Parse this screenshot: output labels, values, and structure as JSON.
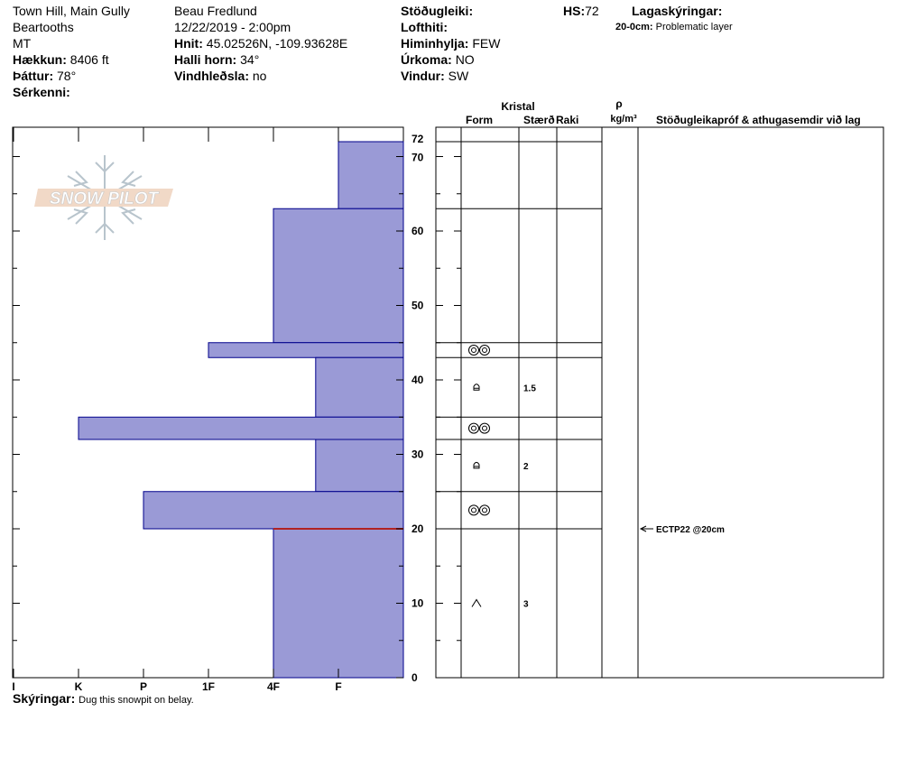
{
  "header": {
    "location": "Town Hill, Main Gully",
    "range": "Beartooths",
    "state": "MT",
    "elevation_label": "Hækkun:",
    "elevation": "8406 ft",
    "aspect_label": "Þáttur:",
    "aspect": "78°",
    "features_label": "Sérkenni:",
    "observer": "Beau  Fredlund",
    "datetime": "12/22/2019 - 2:00pm",
    "coords_label": "Hnit:",
    "coords": "45.02526N, -109.93628E",
    "slope_label": "Halli horn:",
    "slope": "34°",
    "wind_loading_label": "Vindhleðsla:",
    "wind_loading": "no",
    "stability_label": "Stöðugleiki:",
    "air_temp_label": "Lofthiti:",
    "sky_label": "Himinhylja:",
    "sky": "FEW",
    "precip_label": "Úrkoma:",
    "precip": "NO",
    "wind_label": "Vindur:",
    "wind": "SW",
    "hs_label": "HS:",
    "hs": "72",
    "layer_notes_label": "Lagaskýringar:",
    "layer_note_depth": "20-0cm:",
    "layer_note_text": "Problematic layer"
  },
  "logo_text": "SNOW PILOT",
  "table_headers": {
    "crystal": "Kristal",
    "form": "Form",
    "size": "Stærð",
    "moisture": "Raki",
    "rho": "ρ",
    "density_unit": "kg/m³",
    "tests": "Stöðugleikapróf & athugasemdir við lag"
  },
  "notes_label": "Skýringar:",
  "notes": "Dug this snowpit on belay.",
  "colors": {
    "layer_fill": "#9a9ad6",
    "layer_stroke": "#00008b",
    "problem_line": "#b22222"
  },
  "chart_data": {
    "type": "bar",
    "orientation": "horizontal",
    "y_axis": {
      "label": "",
      "range": [
        0,
        72
      ],
      "ticks": [
        0,
        10,
        20,
        30,
        40,
        50,
        60,
        70,
        72
      ]
    },
    "x_axis": {
      "categories": [
        "I",
        "K",
        "P",
        "1F",
        "4F",
        "F"
      ],
      "direction": "right-to-left"
    },
    "layers": [
      {
        "top": 72,
        "bottom": 63,
        "hardness": "F"
      },
      {
        "top": 63,
        "bottom": 45,
        "hardness": "4F"
      },
      {
        "top": 45,
        "bottom": 43,
        "hardness": "1F"
      },
      {
        "top": 43,
        "bottom": 35,
        "hardness": "4F-"
      },
      {
        "top": 35,
        "bottom": 32,
        "hardness": "K"
      },
      {
        "top": 32,
        "bottom": 25,
        "hardness": "4F-"
      },
      {
        "top": 25,
        "bottom": 20,
        "hardness": "P"
      },
      {
        "top": 20,
        "bottom": 0,
        "hardness": "4F"
      }
    ],
    "hardness_index": {
      "F": 1,
      "4F-": 1.35,
      "4F": 2,
      "1F": 3,
      "P": 4,
      "K": 5,
      "I": 6
    },
    "problem_layer_depth": 20,
    "crystal_rows": [
      {
        "depth": 44,
        "form": "precipitation-particles",
        "size": ""
      },
      {
        "depth": 39,
        "form": "hoar",
        "size": "1.5"
      },
      {
        "depth": 33.5,
        "form": "precipitation-particles",
        "size": ""
      },
      {
        "depth": 28.5,
        "form": "hoar",
        "size": "2"
      },
      {
        "depth": 22.5,
        "form": "precipitation-particles",
        "size": ""
      },
      {
        "depth": 10,
        "form": "depth-hoar",
        "size": "3"
      }
    ],
    "stability_tests": [
      {
        "depth": 20,
        "label": "ECTP22 @20cm"
      }
    ]
  }
}
